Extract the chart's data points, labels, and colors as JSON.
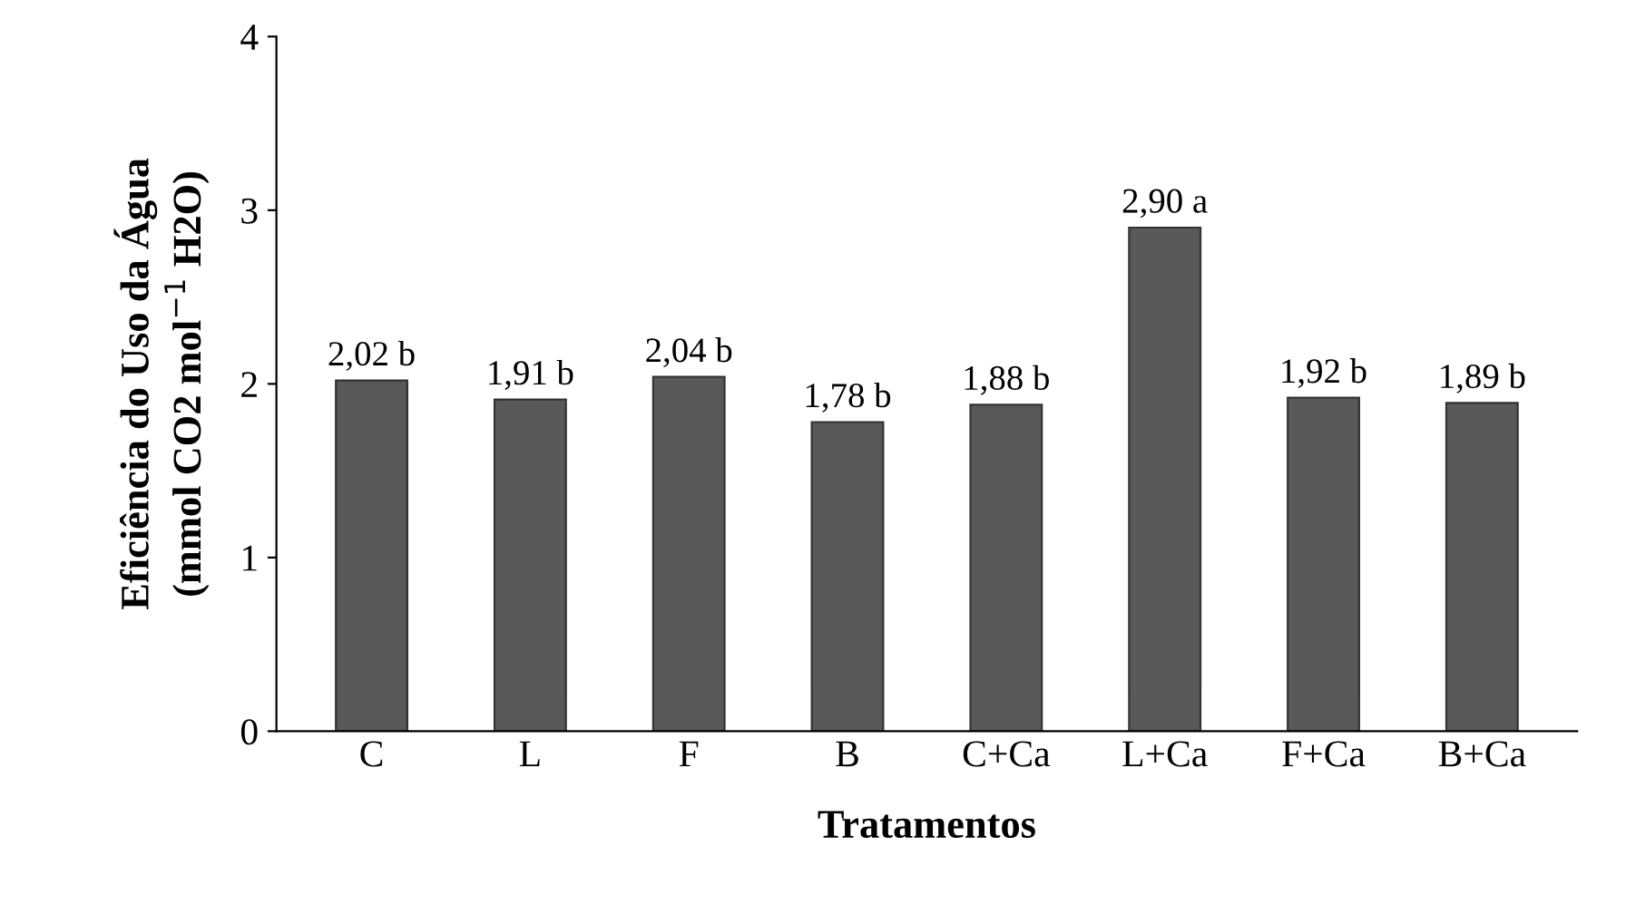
{
  "chart_data": {
    "type": "bar",
    "xlabel": "Tratamentos",
    "ylabel": "Eficiência do Uso da Água\n(mmol CO2 mol$^{−1}$ H2O)",
    "categories": [
      "C",
      "L",
      "F",
      "B",
      "C+Ca",
      "L+Ca",
      "F+Ca",
      "B+Ca"
    ],
    "values": [
      2.02,
      1.91,
      2.04,
      1.78,
      1.88,
      2.9,
      1.92,
      1.89
    ],
    "value_labels": [
      "2,02 b",
      "1,91 b",
      "2,04 b",
      "1,78 b",
      "1,88 b",
      "2,90 a",
      "1,92 b",
      "1,89 b"
    ],
    "color": "#595959",
    "ylim": [
      0,
      4
    ],
    "yticks": [
      0,
      1,
      2,
      3,
      4
    ],
    "grid": false,
    "legend": false
  }
}
